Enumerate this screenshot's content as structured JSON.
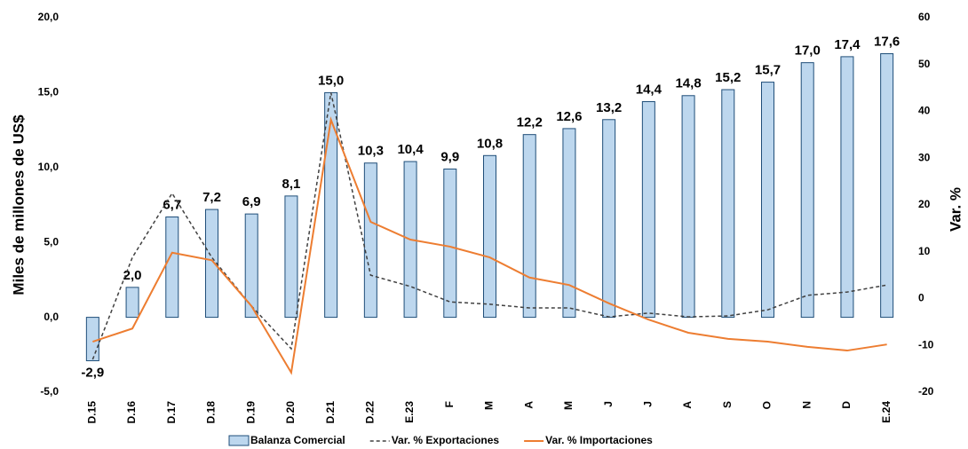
{
  "chart_data": {
    "type": "bar_line",
    "y_label": "Miles de millones de US$",
    "y2_label": "Var. %",
    "categories": [
      "D.15",
      "D.16",
      "D.17",
      "D.18",
      "D.19",
      "D.20",
      "D.21",
      "D.22",
      "E.23",
      "F",
      "M",
      "A",
      "M",
      "J",
      "J",
      "A",
      "S",
      "O",
      "N",
      "D",
      "E.24"
    ],
    "series": [
      {
        "name": "Balanza Comercial",
        "type": "bar",
        "color": "#bdd7ee",
        "edge": "#1f4e79",
        "values": [
          -2.9,
          2.0,
          6.7,
          7.2,
          6.9,
          8.1,
          15.0,
          10.3,
          10.4,
          9.9,
          10.8,
          12.2,
          12.6,
          13.2,
          14.4,
          14.8,
          15.2,
          15.7,
          17.0,
          17.4,
          17.6
        ],
        "value_labels": [
          "-2,9",
          "2,0",
          "6,7",
          "7,2",
          "6,9",
          "8,1",
          "15,0",
          "10,3",
          "10,4",
          "9,9",
          "10,8",
          "12,2",
          "12,6",
          "13,2",
          "14,4",
          "14,8",
          "15,2",
          "15,7",
          "17,0",
          "17,4",
          "17,6"
        ]
      },
      {
        "name": "Var. % Exportaciones",
        "type": "line",
        "dashed": true,
        "axis": "y2",
        "color": "#404040",
        "values": [
          -13,
          8.8,
          22.5,
          8.8,
          -1.6,
          -10.7,
          44,
          5,
          2.6,
          -0.7,
          -1.2,
          -2,
          -2,
          -3.9,
          -3.1,
          -3.9,
          -3.7,
          -2.4,
          0.7,
          1.4,
          2.9
        ]
      },
      {
        "name": "Var. % Importaciones",
        "type": "line",
        "dashed": false,
        "axis": "y2",
        "color": "#ed7d31",
        "values": [
          -9.2,
          -6.4,
          9.8,
          8.2,
          -1.6,
          -15.8,
          38.2,
          16.4,
          12.6,
          11.1,
          8.8,
          4.5,
          2.9,
          -1,
          -4.5,
          -7.3,
          -8.6,
          -9.2,
          -10.3,
          -11.1,
          -9.8
        ]
      }
    ],
    "ylim": [
      -5,
      20
    ],
    "yticks": [
      {
        "value": -5,
        "label": "-5,0"
      },
      {
        "value": 0,
        "label": "0,0"
      },
      {
        "value": 5,
        "label": "5,0"
      },
      {
        "value": 10,
        "label": "10,0"
      },
      {
        "value": 15,
        "label": "15,0"
      },
      {
        "value": 20,
        "label": "20,0"
      }
    ],
    "y2lim": [
      -20,
      60
    ],
    "y2ticks": [
      -20,
      -10,
      0,
      10,
      20,
      30,
      40,
      50,
      60
    ],
    "grid": false,
    "legend": "bottom"
  }
}
